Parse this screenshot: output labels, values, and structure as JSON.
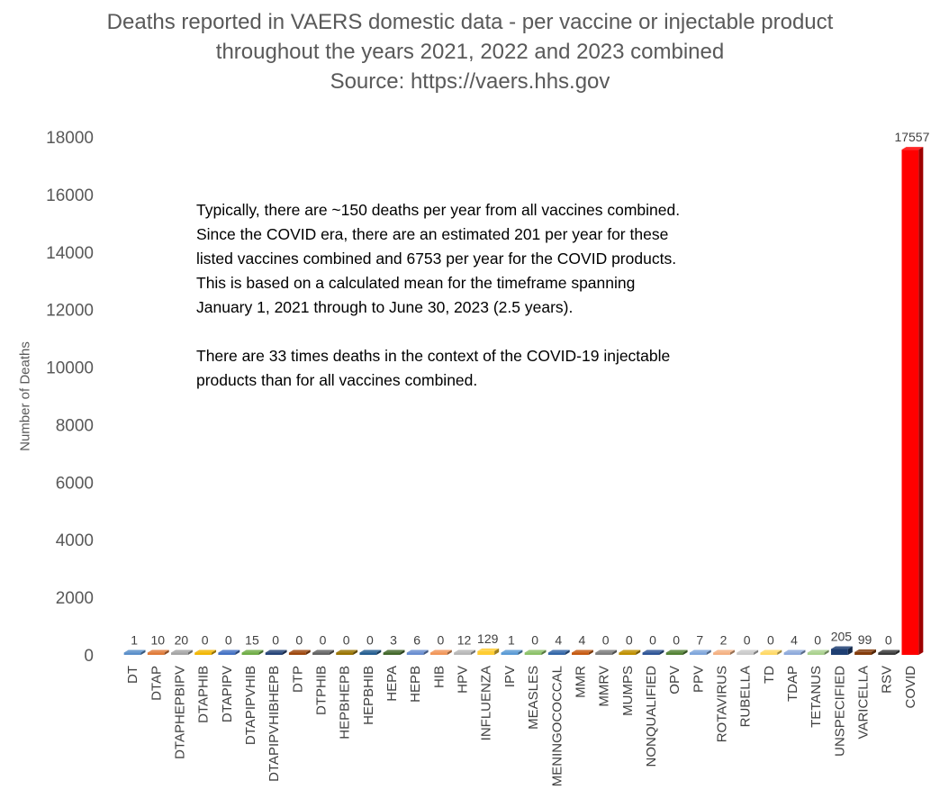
{
  "chart_data": {
    "type": "bar",
    "title_lines": [
      "Deaths reported in VAERS domestic data - per vaccine or injectable product",
      "throughout the years 2021, 2022 and 2023 combined",
      "Source: https://vaers.hhs.gov"
    ],
    "xlabel": "",
    "ylabel": "Number of Deaths",
    "ylim": [
      0,
      18000
    ],
    "yticks": [
      0,
      2000,
      4000,
      6000,
      8000,
      10000,
      12000,
      14000,
      16000,
      18000
    ],
    "grid": false,
    "legend": "none",
    "categories": [
      "DT",
      "DTAP",
      "DTAPHEPBIPV",
      "DTAPHIB",
      "DTAPIPV",
      "DTAPIPVHIB",
      "DTAPIPVHIBHEPB",
      "DTP",
      "DTPHIB",
      "HEPBHEPB",
      "HEPBHIB",
      "HEPA",
      "HEPB",
      "HIB",
      "HPV",
      "INFLUENZA",
      "IPV",
      "MEASLES",
      "MENINGOCOCCAL",
      "MMR",
      "MMRV",
      "MUMPS",
      "NONQUALIFIED",
      "OPV",
      "PPV",
      "ROTAVIRUS",
      "RUBELLA",
      "TD",
      "TDAP",
      "TETANUS",
      "UNSPECIFIED",
      "VARICELLA",
      "RSV",
      "COVID"
    ],
    "values": [
      1,
      10,
      20,
      0,
      0,
      15,
      0,
      0,
      0,
      0,
      0,
      3,
      6,
      0,
      12,
      129,
      1,
      0,
      4,
      4,
      0,
      0,
      0,
      0,
      7,
      2,
      0,
      0,
      4,
      0,
      205,
      99,
      0,
      17557
    ],
    "value_labels": [
      "1",
      "10",
      "20",
      "0",
      "0",
      "15",
      "0",
      "0",
      "0",
      "0",
      "0",
      "3",
      "6",
      "0",
      "12",
      "129",
      "1",
      "0",
      "4",
      "4",
      "0",
      "0",
      "0",
      "0",
      "7",
      "2",
      "0",
      "0",
      "4",
      "0",
      "205",
      "99",
      "0",
      "17557"
    ],
    "bar_colors": [
      "#5b8fc9",
      "#e07b39",
      "#a5a5a5",
      "#f2b705",
      "#4472c4",
      "#70ad47",
      "#264478",
      "#9e480e",
      "#636363",
      "#997300",
      "#255e91",
      "#43682b",
      "#698ed0",
      "#f1975a",
      "#b7b7b7",
      "#ffcd33",
      "#5b9bd5",
      "#8cc168",
      "#3366a8",
      "#c55a11",
      "#7f7f7f",
      "#bf9000",
      "#2e5597",
      "#548235",
      "#7fa6db",
      "#f4b183",
      "#c9c9c9",
      "#ffd966",
      "#8eaadb",
      "#a9d18e",
      "#1f3f73",
      "#843c0c",
      "#3b3b3b",
      "#ff0000"
    ],
    "annotation": [
      "Typically, there are ~150 deaths per year from all vaccines combined. Since the COVID era, there are an estimated 201 per year for these listed vaccines combined and 6753 per year for the COVID products. This is based on a calculated mean for the timeframe spanning January 1, 2021 through to June 30, 2023 (2.5 years).",
      "There are 33 times deaths in the context of the COVID-19 injectable products than for all vaccines combined."
    ]
  }
}
